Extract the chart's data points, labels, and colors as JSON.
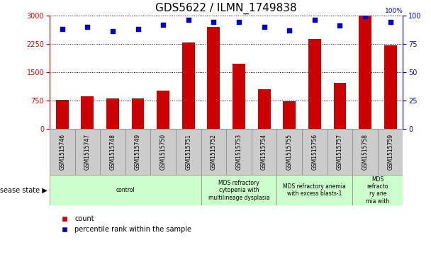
{
  "title": "GDS5622 / ILMN_1749838",
  "samples": [
    "GSM1515746",
    "GSM1515747",
    "GSM1515748",
    "GSM1515749",
    "GSM1515750",
    "GSM1515751",
    "GSM1515752",
    "GSM1515753",
    "GSM1515754",
    "GSM1515755",
    "GSM1515756",
    "GSM1515757",
    "GSM1515758",
    "GSM1515759"
  ],
  "counts": [
    770,
    860,
    790,
    800,
    1000,
    2280,
    2700,
    1720,
    1050,
    730,
    2380,
    1210,
    3000,
    2200
  ],
  "percentiles": [
    88,
    90,
    86,
    88,
    92,
    96,
    94,
    94,
    90,
    87,
    96,
    91,
    99,
    94
  ],
  "bar_color": "#cc0000",
  "dot_color": "#0000cc",
  "ylim_left": [
    0,
    3000
  ],
  "ylim_right": [
    0,
    100
  ],
  "yticks_left": [
    0,
    750,
    1500,
    2250,
    3000
  ],
  "yticks_right": [
    0,
    25,
    50,
    75,
    100
  ],
  "grid_color": "#000000",
  "bg_color": "#ffffff",
  "sample_bg": "#cccccc",
  "disease_bg": "#ccffcc",
  "disease_groups": [
    {
      "label": "control",
      "start": 0,
      "end": 6
    },
    {
      "label": "MDS refractory\ncytopenia with\nmultilineage dysplasia",
      "start": 6,
      "end": 9
    },
    {
      "label": "MDS refractory anemia\nwith excess blasts-1",
      "start": 9,
      "end": 12
    },
    {
      "label": "MDS\nrefracto\nry ane\nmia with",
      "start": 12,
      "end": 14
    }
  ],
  "disease_label": "disease state",
  "legend_count": "count",
  "legend_pct": "percentile rank within the sample",
  "title_fontsize": 11,
  "tick_fontsize": 7,
  "label_fontsize": 7
}
